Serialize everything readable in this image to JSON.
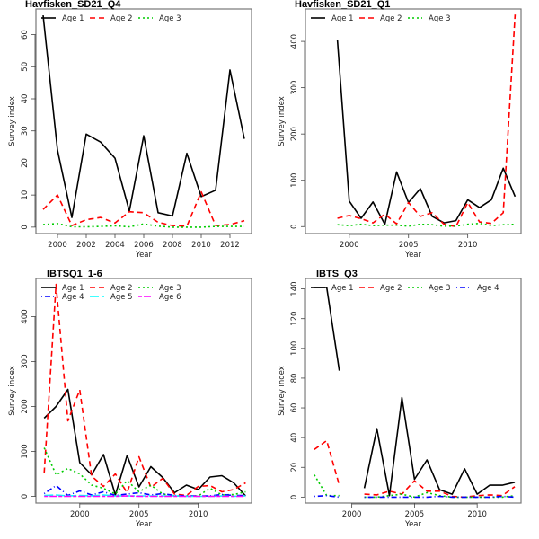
{
  "chart_data": [
    {
      "type": "line",
      "title": "Havfisken_SD21_Q4",
      "xlabel": "Year",
      "ylabel": "Survey index",
      "xlim": [
        1998.5,
        2013.5
      ],
      "ylim": [
        -2,
        68
      ],
      "xticks": [
        2000,
        2002,
        2004,
        2006,
        2008,
        2010,
        2012
      ],
      "yticks": [
        0,
        10,
        20,
        30,
        40,
        50,
        60
      ],
      "legend": {
        "position": "top-left",
        "columns": 3
      },
      "x": [
        1999,
        2000,
        2001,
        2002,
        2003,
        2004,
        2005,
        2006,
        2007,
        2008,
        2009,
        2010,
        2011,
        2012,
        2013
      ],
      "series": [
        {
          "name": "Age 1",
          "color": "#000000",
          "style": "solid",
          "values": [
            66,
            24,
            3,
            29,
            26.5,
            21.5,
            5,
            28.5,
            4.5,
            3.5,
            23,
            9.5,
            11.5,
            49,
            27.5
          ]
        },
        {
          "name": "Age 2",
          "color": "#ff0000",
          "style": "dashed",
          "values": [
            5.5,
            10,
            0.5,
            2.3,
            3,
            1.3,
            4.8,
            4.5,
            1.5,
            0.5,
            0.3,
            11,
            0.5,
            0.8,
            2
          ]
        },
        {
          "name": "Age 3",
          "color": "#00cc00",
          "style": "dotted",
          "values": [
            0.8,
            1.1,
            0.1,
            0.1,
            0.2,
            0.4,
            0.1,
            1.0,
            0.3,
            0.0,
            0.0,
            0.0,
            0.2,
            0.2,
            0.2
          ]
        }
      ]
    },
    {
      "type": "line",
      "title": "Havfisken_SD21_Q1",
      "xlabel": "Year",
      "ylabel": "Survey index",
      "xlim": [
        1996.3,
        2014.5
      ],
      "ylim": [
        -15,
        470
      ],
      "xticks": [
        2000,
        2005,
        2010
      ],
      "yticks": [
        0,
        100,
        200,
        300,
        400
      ],
      "legend": {
        "position": "top-left",
        "columns": 3
      },
      "x": [
        1999,
        2000,
        2001,
        2002,
        2003,
        2004,
        2005,
        2006,
        2007,
        2008,
        2009,
        2010,
        2011,
        2012,
        2013,
        2014
      ],
      "series": [
        {
          "name": "Age 1",
          "color": "#000000",
          "style": "solid",
          "values": [
            403,
            55,
            18,
            53,
            5,
            118,
            52,
            82,
            22,
            8,
            13,
            58,
            41,
            58,
            126,
            65
          ]
        },
        {
          "name": "Age 2",
          "color": "#ff0000",
          "style": "dashed",
          "values": [
            18,
            24,
            17,
            8,
            27,
            6,
            52,
            22,
            30,
            5,
            0,
            52,
            10,
            7,
            30,
            458
          ]
        },
        {
          "name": "Age 3",
          "color": "#00cc00",
          "style": "dotted",
          "values": [
            4,
            2,
            5,
            2,
            3,
            3,
            1,
            5,
            4,
            1,
            1,
            5,
            7,
            2,
            4,
            5
          ]
        }
      ]
    },
    {
      "type": "line",
      "title": "IBTSQ1_1-6",
      "xlabel": "Year",
      "ylabel": "Survey index",
      "xlim": [
        1996.3,
        2014.5
      ],
      "ylim": [
        -15,
        485
      ],
      "xticks": [
        2000,
        2005,
        2010
      ],
      "yticks": [
        0,
        100,
        200,
        300,
        400
      ],
      "legend": {
        "position": "top-left",
        "columns": 3
      },
      "x": [
        1997,
        1998,
        1999,
        2000,
        2001,
        2002,
        2003,
        2004,
        2005,
        2006,
        2007,
        2008,
        2009,
        2010,
        2011,
        2012,
        2013,
        2014
      ],
      "series": [
        {
          "name": "Age 1",
          "color": "#000000",
          "style": "solid",
          "values": [
            174,
            200,
            238,
            75,
            48,
            93,
            3,
            91,
            21,
            66,
            42,
            8,
            25,
            15,
            43,
            46,
            30,
            1
          ]
        },
        {
          "name": "Age 2",
          "color": "#ff0000",
          "style": "dashed",
          "values": [
            52,
            472,
            168,
            237,
            45,
            22,
            50,
            8,
            88,
            20,
            40,
            5,
            2,
            22,
            24,
            10,
            15,
            30
          ]
        },
        {
          "name": "Age 3",
          "color": "#00cc00",
          "style": "dotted",
          "values": [
            108,
            48,
            62,
            50,
            25,
            18,
            5,
            35,
            10,
            25,
            5,
            1,
            1,
            1,
            18,
            3,
            4,
            10
          ]
        },
        {
          "name": "Age 4",
          "color": "#0000ff",
          "style": "dotdash",
          "values": [
            6,
            24,
            2,
            12,
            3,
            10,
            2,
            5,
            8,
            3,
            6,
            2,
            1,
            1,
            1,
            4,
            2,
            2
          ]
        },
        {
          "name": "Age 5",
          "color": "#00ffff",
          "style": "longdash",
          "values": [
            2,
            3,
            1,
            2,
            1,
            3,
            1,
            1,
            1,
            1,
            1,
            1,
            0,
            0,
            0,
            1,
            0,
            1
          ]
        },
        {
          "name": "Age 6",
          "color": "#ff00ff",
          "style": "twodash",
          "values": [
            0,
            0,
            0,
            0,
            0,
            0,
            0,
            1,
            0,
            0,
            0,
            0,
            0,
            0,
            0,
            0,
            0,
            0
          ]
        }
      ]
    },
    {
      "type": "line",
      "title": "IBTS_Q3",
      "xlabel": "Year",
      "ylabel": "Survey index",
      "xlim": [
        1996.3,
        2013.5
      ],
      "ylim": [
        -4,
        147
      ],
      "xticks": [
        2000,
        2005,
        2010
      ],
      "yticks": [
        0,
        20,
        40,
        60,
        80,
        100,
        120,
        140
      ],
      "legend": {
        "position": "top-left",
        "columns": 4
      },
      "x": [
        1997,
        1998,
        1999,
        2000,
        2001,
        2002,
        2003,
        2004,
        2005,
        2006,
        2007,
        2008,
        2009,
        2010,
        2011,
        2012,
        2013
      ],
      "series": [
        {
          "name": "Age 1",
          "color": "#000000",
          "style": "solid",
          "values": [
            141,
            141,
            85,
            null,
            6,
            46,
            1,
            67,
            12,
            25,
            5,
            2,
            19,
            2,
            8,
            8,
            10
          ]
        },
        {
          "name": "Age 2",
          "color": "#ff0000",
          "style": "dashed",
          "values": [
            32,
            38,
            8,
            null,
            2,
            1.5,
            4,
            2,
            11,
            4,
            4,
            0.5,
            0,
            1,
            1.5,
            1,
            7
          ]
        },
        {
          "name": "Age 3",
          "color": "#00cc00",
          "style": "dotted",
          "values": [
            15,
            1,
            1,
            null,
            0,
            0,
            1,
            2,
            0,
            3,
            1,
            0,
            0,
            0,
            0,
            0,
            1
          ]
        },
        {
          "name": "Age 4",
          "color": "#0000ff",
          "style": "dotdash",
          "values": [
            0.5,
            1,
            0,
            null,
            0,
            0,
            0,
            0,
            0,
            0,
            0.5,
            0,
            0,
            0,
            0,
            0.5,
            0
          ]
        }
      ]
    }
  ]
}
